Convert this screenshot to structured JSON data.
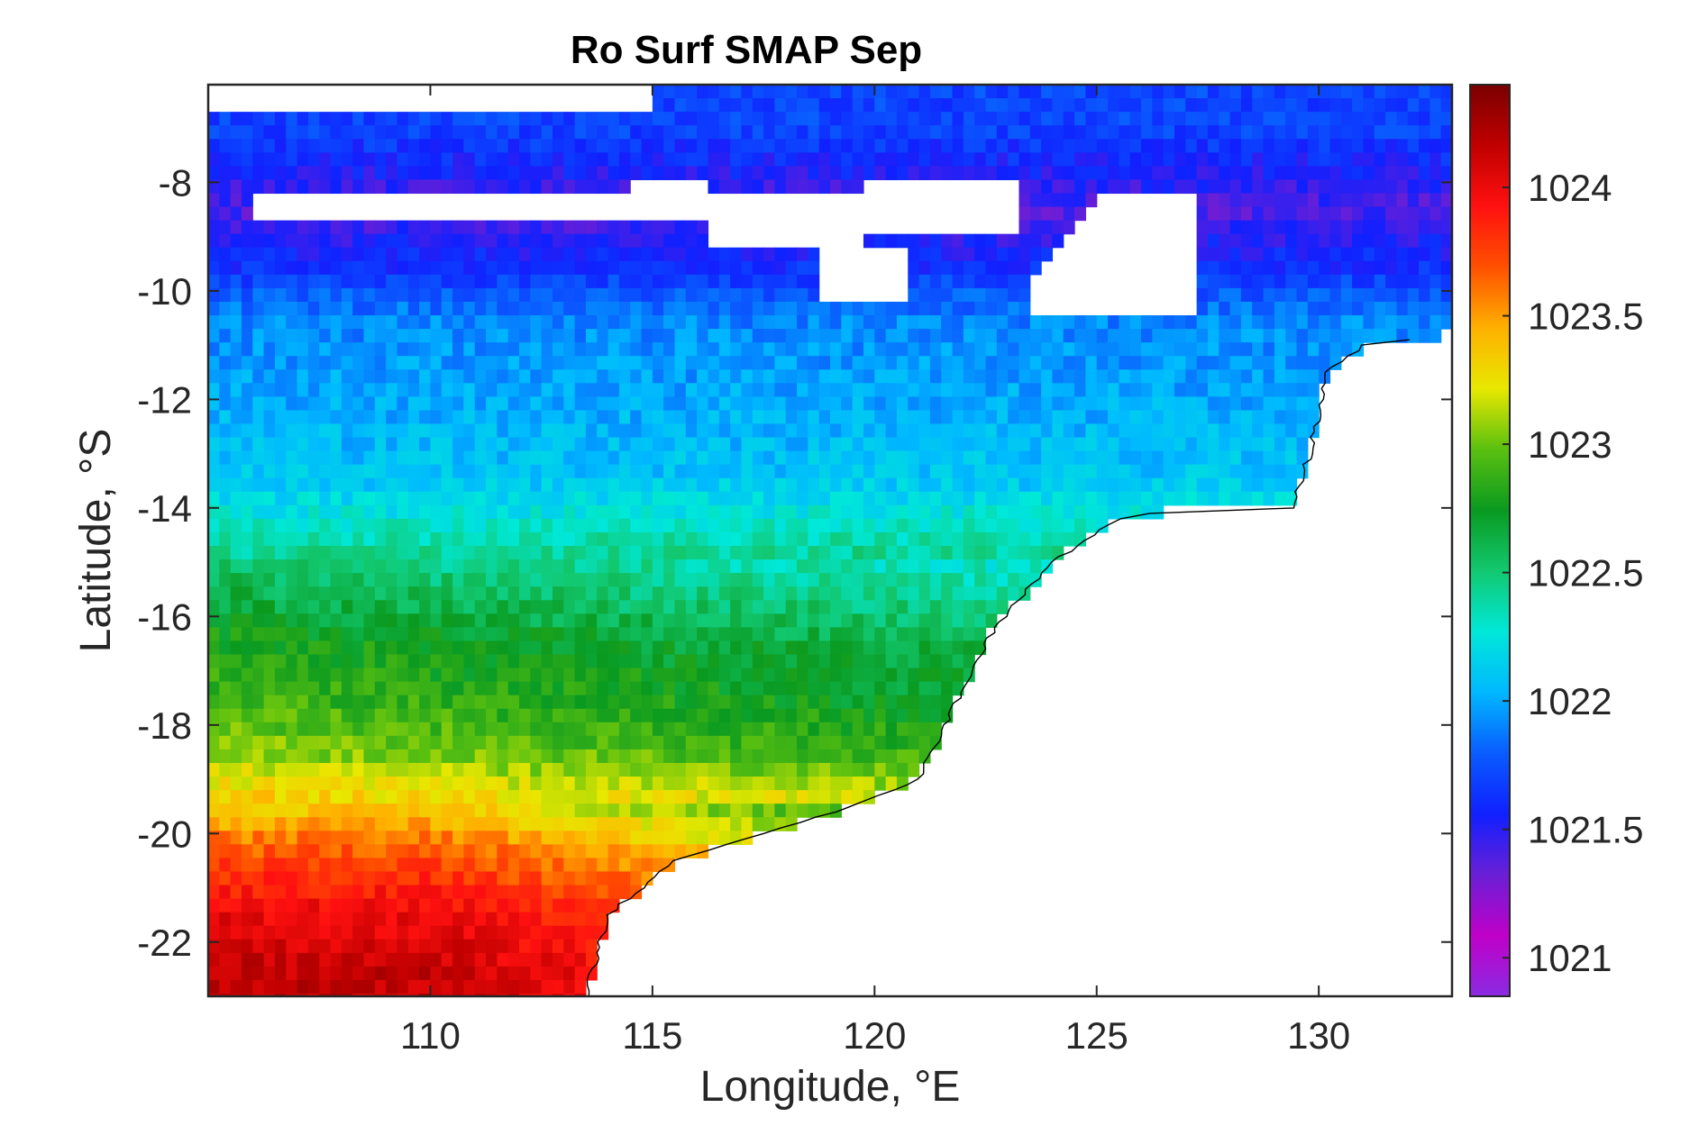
{
  "chart_data": {
    "type": "heatmap",
    "title": "Ro Surf SMAP Sep",
    "xlabel": "Longitude, °E",
    "ylabel": "Latitude, °S",
    "xlim": [
      105,
      133
    ],
    "ylim": [
      -23,
      -6.2
    ],
    "x_ticks": [
      {
        "value": 110,
        "label": "110"
      },
      {
        "value": 115,
        "label": "115"
      },
      {
        "value": 120,
        "label": "120"
      },
      {
        "value": 125,
        "label": "125"
      },
      {
        "value": 130,
        "label": "130"
      }
    ],
    "y_ticks": [
      {
        "value": -8,
        "label": "-8"
      },
      {
        "value": -10,
        "label": "-10"
      },
      {
        "value": -12,
        "label": "-12"
      },
      {
        "value": -14,
        "label": "-14"
      },
      {
        "value": -16,
        "label": "-16"
      },
      {
        "value": -18,
        "label": "-18"
      },
      {
        "value": -20,
        "label": "-20"
      },
      {
        "value": -22,
        "label": "-22"
      }
    ],
    "colorbar": {
      "min": 1020.85,
      "max": 1024.4,
      "ticks": [
        {
          "value": 1021,
          "label": "1021"
        },
        {
          "value": 1021.5,
          "label": "1021.5"
        },
        {
          "value": 1022,
          "label": "1022"
        },
        {
          "value": 1022.5,
          "label": "1022.5"
        },
        {
          "value": 1023,
          "label": "1023"
        },
        {
          "value": 1023.5,
          "label": "1023.5"
        },
        {
          "value": 1024,
          "label": "1024"
        }
      ],
      "colormap": [
        "#8a2be2",
        "#c000c8",
        "#6a1fd6",
        "#1020ff",
        "#0a5cff",
        "#00b8ff",
        "#00e8d8",
        "#12c870",
        "#0a9a20",
        "#5ac010",
        "#e8e800",
        "#ffb000",
        "#ff5000",
        "#ff1010",
        "#c00000",
        "#7a0000"
      ]
    },
    "grid_resolution_deg": 0.25,
    "landmask_threshold_note": "",
    "field_anchors": [
      {
        "lat": -7.0,
        "value": 1021.7
      },
      {
        "lat": -8.5,
        "value": 1021.4
      },
      {
        "lat": -9.5,
        "value": 1021.6
      },
      {
        "lat": -10.5,
        "value": 1021.9
      },
      {
        "lat": -12.0,
        "value": 1022.0
      },
      {
        "lat": -13.5,
        "value": 1022.1
      },
      {
        "lat": -14.5,
        "value": 1022.35
      },
      {
        "lat": -15.5,
        "value": 1022.55
      },
      {
        "lat": -16.5,
        "value": 1022.75
      },
      {
        "lat": -17.5,
        "value": 1022.85
      },
      {
        "lat": -18.5,
        "value": 1023.0
      },
      {
        "lat": -19.5,
        "value": 1023.35
      },
      {
        "lat": -20.5,
        "value": 1023.75
      },
      {
        "lat": -21.5,
        "value": 1024.0
      },
      {
        "lat": -22.5,
        "value": 1024.15
      }
    ]
  }
}
